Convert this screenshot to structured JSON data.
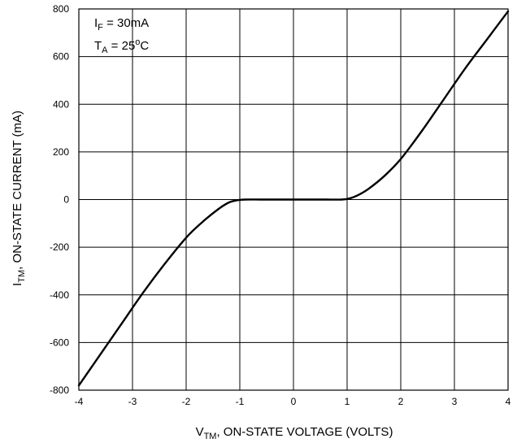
{
  "chart_data": {
    "type": "line",
    "xlim": [
      -4,
      4
    ],
    "ylim": [
      -800,
      800
    ],
    "x_ticks": [
      "-4",
      "-3",
      "-2",
      "-1",
      "0",
      "1",
      "2",
      "3",
      "4"
    ],
    "y_ticks": [
      "800",
      "600",
      "400",
      "200",
      "0",
      "-200",
      "-400",
      "-600",
      "-800"
    ],
    "grid": true,
    "xlabel": {
      "main": "V",
      "sub": "TM",
      "rest": ", ON-STATE VOLTAGE (VOLTS)"
    },
    "ylabel": {
      "main": "I",
      "sub": "TM",
      "rest": ", ON-STATE CURRENT (mA)"
    },
    "annotations": [
      {
        "main": "I",
        "sub": "F",
        "rest": " = 30mA",
        "sup": "",
        "tail": ""
      },
      {
        "main": "T",
        "sub": "A",
        "rest": " = 25",
        "sup": "o",
        "tail": "C"
      }
    ],
    "series": [
      {
        "color": "#000000",
        "x": [
          -4.0,
          -3.6,
          -3.2,
          -2.8,
          -2.4,
          -2.0,
          -1.7,
          -1.4,
          -1.2,
          -1.05,
          -0.9,
          -0.6,
          -0.3,
          0.0,
          0.3,
          0.6,
          0.9,
          1.05,
          1.2,
          1.4,
          1.7,
          2.0,
          2.4,
          2.8,
          3.2,
          3.6,
          4.0
        ],
        "y": [
          -780,
          -650,
          -520,
          -390,
          -270,
          -160,
          -95,
          -40,
          -12,
          -3,
          0,
          0,
          0,
          0,
          0,
          0,
          0,
          5,
          18,
          45,
          100,
          170,
          290,
          420,
          550,
          670,
          790
        ]
      }
    ]
  }
}
